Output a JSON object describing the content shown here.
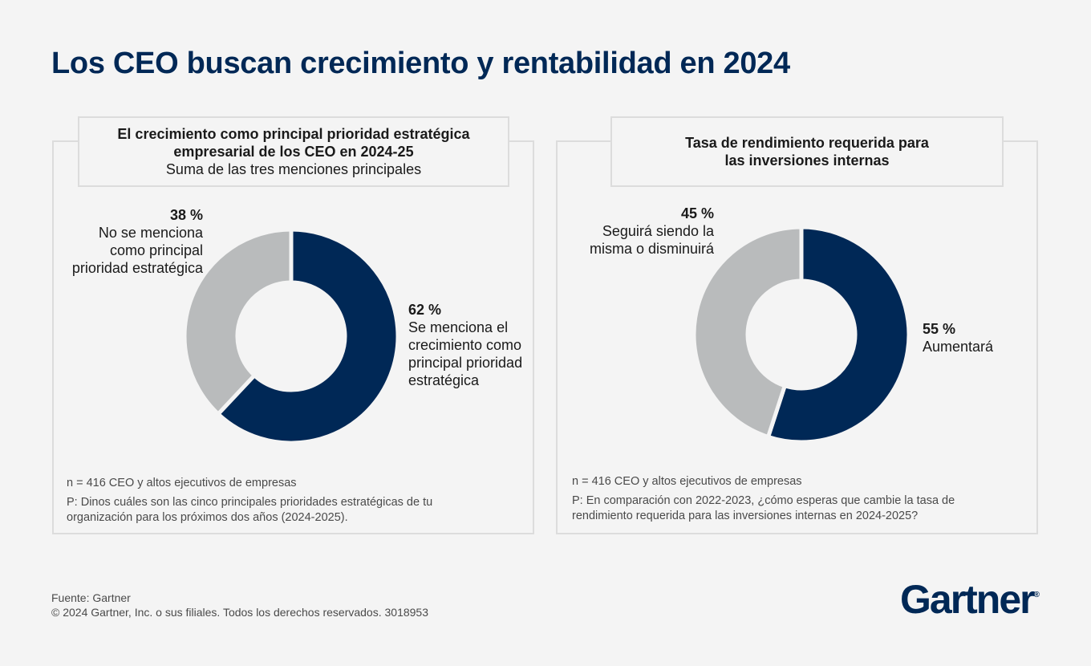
{
  "page": {
    "title": "Los CEO buscan crecimiento y rentabilidad en 2024",
    "footer": {
      "source": "Fuente: Gartner",
      "copyright": "© 2024 Gartner, Inc. o sus filiales. Todos los derechos reservados. 3018953"
    },
    "logo": {
      "text": "Gartner",
      "mark": "®"
    }
  },
  "colors": {
    "navy": "#002856",
    "gray": "#b9bbbc",
    "background": "#f4f4f4",
    "border": "#dcdcdc"
  },
  "chart_data": [
    {
      "type": "pie",
      "title_line1": "El crecimiento como principal prioridad estratégica",
      "title_line2": "empresarial de los CEO en 2024-25",
      "subtitle": "Suma de las tres menciones principales",
      "slices": [
        {
          "pct": "62 %",
          "value": 62,
          "label": "Se menciona el\ncrecimiento como\nprincipal prioridad\nestratégica",
          "color": "#002856"
        },
        {
          "pct": "38 %",
          "value": 38,
          "label": "No se menciona\ncomo principal\nprioridad estratégica",
          "color": "#b9bbbc"
        }
      ],
      "n_note": "n = 416 CEO y altos ejecutivos de empresas",
      "question": "P: Dinos cuáles son las cinco principales prioridades estratégicas de tu organización para los próximos dos años (2024-2025)."
    },
    {
      "type": "pie",
      "title_line1": "Tasa de rendimiento requerida para",
      "title_line2": "las inversiones internas",
      "slices": [
        {
          "pct": "55 %",
          "value": 55,
          "label": "Aumentará",
          "color": "#002856"
        },
        {
          "pct": "45 %",
          "value": 45,
          "label": "Seguirá siendo la\nmisma o disminuirá",
          "color": "#b9bbbc"
        }
      ],
      "n_note": "n = 416 CEO y altos ejecutivos de empresas",
      "question": "P: En comparación con 2022-2023, ¿cómo esperas que cambie la tasa de rendimiento requerida para las inversiones internas en 2024-2025?"
    }
  ]
}
